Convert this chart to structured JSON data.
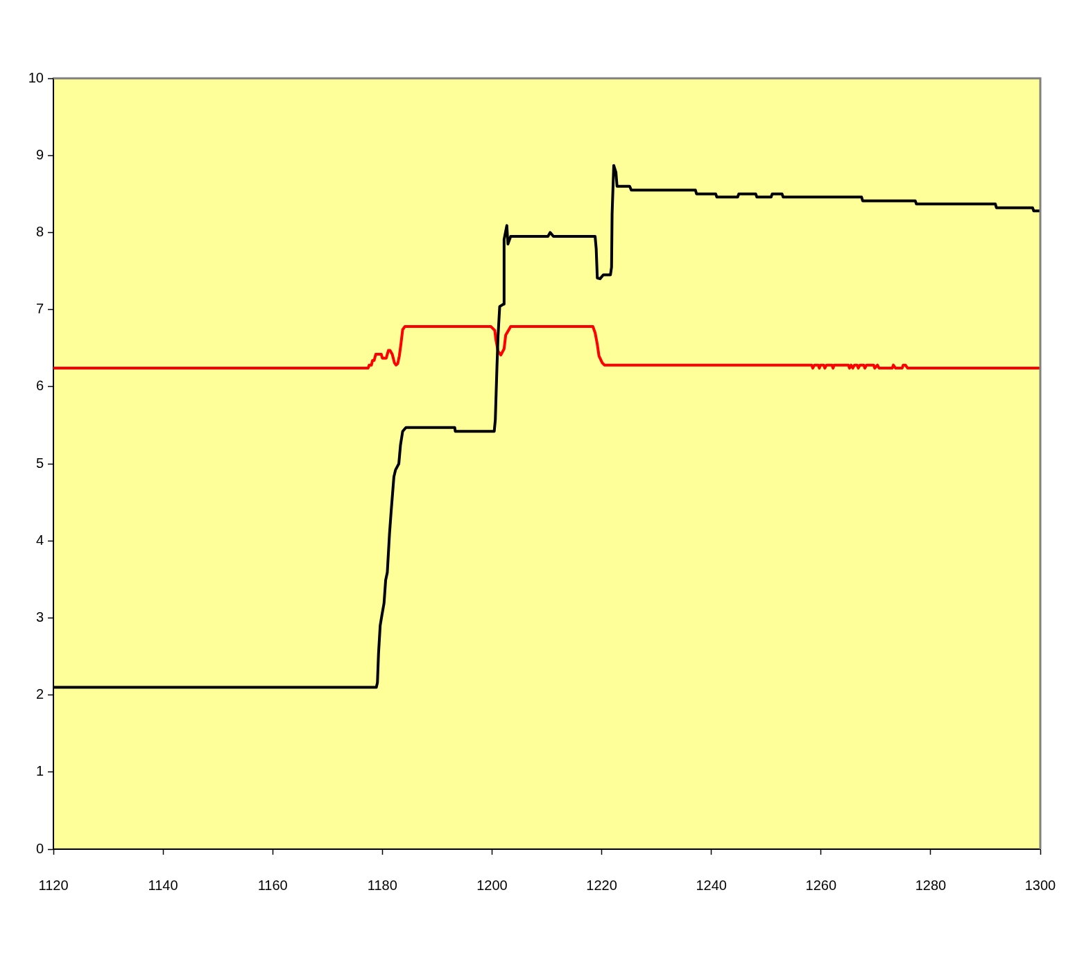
{
  "chart_data": {
    "type": "line",
    "marker": "none",
    "xlim": [
      1120,
      1300
    ],
    "xticks": [
      1120,
      1140,
      1160,
      1180,
      1200,
      1220,
      1240,
      1260,
      1280,
      1300
    ],
    "ylim": [
      0,
      10
    ],
    "yticks": [
      0,
      1,
      2,
      3,
      4,
      5,
      6,
      7,
      8,
      9,
      10
    ],
    "series": [
      {
        "color": "#000000",
        "x": [
          1120,
          1178.9,
          1179.1,
          1179.3,
          1179.6,
          1179.9,
          1180.3,
          1180.6,
          1180.9,
          1181.3,
          1181.6,
          1182.1,
          1182.4,
          1183,
          1183.3,
          1183.7,
          1184.3,
          1193.2,
          1193.3,
          1200.4,
          1200.6,
          1200.9,
          1201.1,
          1201.4,
          1202.1,
          1202.2,
          1202.7,
          1202.9,
          1203.4,
          1210.2,
          1210.6,
          1211.2,
          1218.8,
          1219,
          1219.2,
          1219.7,
          1220.3,
          1221.6,
          1221.8,
          1221.9,
          1222.2,
          1222.6,
          1222.8,
          1225.1,
          1225.4,
          1237.1,
          1237.3,
          1240.8,
          1241,
          1244.8,
          1245,
          1248.1,
          1248.3,
          1250.9,
          1251.1,
          1252.9,
          1253.1,
          1267.4,
          1267.6,
          1277.2,
          1277.4,
          1291.8,
          1292,
          1298.6,
          1298.8,
          1300
        ],
        "values": [
          2.1,
          2.1,
          2.16,
          2.54,
          2.9,
          3.03,
          3.19,
          3.49,
          3.59,
          4.09,
          4.38,
          4.83,
          4.92,
          5.0,
          5.24,
          5.42,
          5.47,
          5.47,
          5.42,
          5.42,
          5.57,
          6.26,
          6.66,
          7.04,
          7.07,
          7.91,
          8.09,
          7.85,
          7.95,
          7.95,
          8.0,
          7.95,
          7.95,
          7.79,
          7.41,
          7.4,
          7.45,
          7.45,
          7.55,
          8.24,
          8.87,
          8.78,
          8.6,
          8.6,
          8.55,
          8.55,
          8.5,
          8.5,
          8.46,
          8.46,
          8.5,
          8.5,
          8.46,
          8.46,
          8.5,
          8.5,
          8.46,
          8.46,
          8.41,
          8.41,
          8.37,
          8.37,
          8.32,
          8.32,
          8.28,
          8.28
        ]
      },
      {
        "color": "#ff0000",
        "x": [
          1120,
          1177.4,
          1177.6,
          1178,
          1178.2,
          1178.5,
          1178.8,
          1179.8,
          1180,
          1180.7,
          1181.1,
          1181.4,
          1181.8,
          1182.2,
          1182.5,
          1182.8,
          1183.1,
          1183.4,
          1183.7,
          1184.1,
          1199.8,
          1200.5,
          1200.7,
          1201.1,
          1201.6,
          1202.2,
          1202.5,
          1203,
          1203.4,
          1218.4,
          1218.8,
          1219.2,
          1219.5,
          1220.1,
          1220.5,
          1258.3,
          1258.5,
          1258.8,
          1259.5,
          1259.7,
          1259.9,
          1260.5,
          1260.7,
          1261,
          1262,
          1262.2,
          1262.4,
          1265,
          1265.2,
          1265.5,
          1265.8,
          1266.1,
          1266.6,
          1266.8,
          1267.1,
          1267.8,
          1268,
          1268.3,
          1269.6,
          1269.8,
          1270.3,
          1270.6,
          1273,
          1273.2,
          1273.6,
          1274.8,
          1275,
          1275.4,
          1275.8,
          1300
        ],
        "values": [
          6.24,
          6.24,
          6.28,
          6.28,
          6.34,
          6.34,
          6.42,
          6.42,
          6.37,
          6.37,
          6.47,
          6.47,
          6.42,
          6.31,
          6.28,
          6.3,
          6.4,
          6.56,
          6.74,
          6.78,
          6.78,
          6.73,
          6.61,
          6.46,
          6.41,
          6.49,
          6.67,
          6.73,
          6.78,
          6.78,
          6.7,
          6.55,
          6.4,
          6.31,
          6.28,
          6.28,
          6.24,
          6.28,
          6.28,
          6.24,
          6.28,
          6.28,
          6.24,
          6.28,
          6.28,
          6.24,
          6.28,
          6.28,
          6.24,
          6.28,
          6.24,
          6.28,
          6.28,
          6.24,
          6.28,
          6.28,
          6.24,
          6.28,
          6.28,
          6.24,
          6.28,
          6.24,
          6.24,
          6.28,
          6.24,
          6.24,
          6.28,
          6.28,
          6.24,
          6.24
        ]
      }
    ]
  }
}
